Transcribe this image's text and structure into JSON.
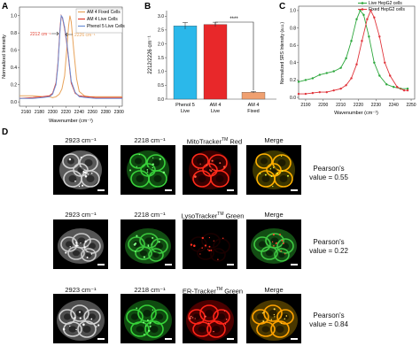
{
  "panels": {
    "A": {
      "letter": "A",
      "xlabel": "Wavenumber (cm⁻¹)",
      "ylabel": "Normalized Intensity",
      "xticks": [
        "2160",
        "2180",
        "2200",
        "2220",
        "2240",
        "2260",
        "2280",
        "2300"
      ],
      "yticks": [
        "0.0",
        "0.2",
        "0.4",
        "0.6",
        "0.8",
        "1.0"
      ],
      "legend": [
        {
          "label": "AM 4 Fixed Cells",
          "color": "#e8a35a"
        },
        {
          "label": "AM 4 Live Cells",
          "color": "#e03b2b"
        },
        {
          "label": "Phenol 5 Live Cells",
          "color": "#6d8fd6"
        }
      ],
      "ann_left": "2212 cm⁻¹",
      "ann_right": "2226 cm⁻¹"
    },
    "B": {
      "letter": "B",
      "ylabel": "2212/2226 cm⁻¹",
      "yticks": [
        "0.0",
        "0.5",
        "1.0",
        "1.5",
        "2.0",
        "2.5",
        "3.0"
      ],
      "categories": [
        "Phenol 5\nLive",
        "AM 4\nLive",
        "AM 4\nFixed"
      ],
      "significance": "****"
    },
    "C": {
      "letter": "C",
      "xlabel": "Wavenumber (cm⁻¹)",
      "ylabel": "Normalized SRS Intensity (a.u.)",
      "xticks": [
        "2190",
        "2200",
        "2210",
        "2220",
        "2230",
        "2240",
        "2250"
      ],
      "yticks": [
        "0.0",
        "0.2",
        "0.4",
        "0.6",
        "0.8",
        "1.0"
      ],
      "legend": [
        {
          "label": "Live HepG2 cells",
          "color": "#2aa63a"
        },
        {
          "label": "Fixed HepG2 cells",
          "color": "#e0333a"
        }
      ]
    },
    "D": {
      "letter": "D",
      "col_headers_row1": [
        "2923 cm⁻¹",
        "2218 cm⁻¹",
        "MitoTracker",
        "Merge"
      ],
      "col_headers_row2": [
        "2923 cm⁻¹",
        "2218 cm⁻¹",
        "LysoTracker",
        "Merge"
      ],
      "col_headers_row3": [
        "2923 cm⁻¹",
        "2218 cm⁻¹",
        "ER-Tracker",
        "Merge"
      ],
      "tm": "TM",
      "suffix_row1": " Red",
      "suffix_row2": " Green",
      "suffix_row3": " Green",
      "pearsons_label": "Pearson's",
      "pearsons_values": [
        "value = 0.55",
        "value = 0.22",
        "value = 0.84"
      ]
    }
  },
  "chart_data": [
    {
      "type": "line",
      "panel": "A",
      "xlabel": "Wavenumber (cm⁻¹)",
      "ylabel": "Normalized Intensity",
      "xlim": [
        2150,
        2305
      ],
      "ylim": [
        -0.05,
        1.1
      ],
      "series": [
        {
          "name": "AM 4 Fixed Cells",
          "color": "#e8a35a",
          "x": [
            2150,
            2170,
            2185,
            2195,
            2200,
            2205,
            2210,
            2214,
            2218,
            2222,
            2224,
            2226,
            2228,
            2232,
            2236,
            2240,
            2248,
            2256,
            2270,
            2290,
            2305
          ],
          "y": [
            0.07,
            0.07,
            0.06,
            0.06,
            0.05,
            0.06,
            0.09,
            0.15,
            0.3,
            0.68,
            0.88,
            1.0,
            0.93,
            0.58,
            0.27,
            0.12,
            0.07,
            0.06,
            0.06,
            0.06,
            0.06
          ]
        },
        {
          "name": "AM 4 Live Cells",
          "color": "#e03b2b",
          "x": [
            2150,
            2170,
            2185,
            2195,
            2200,
            2205,
            2208,
            2211,
            2213,
            2215,
            2218,
            2221,
            2224,
            2228,
            2234,
            2240,
            2250,
            2265,
            2285,
            2305
          ],
          "y": [
            0.04,
            0.05,
            0.06,
            0.07,
            0.1,
            0.22,
            0.45,
            0.85,
            1.0,
            0.97,
            0.85,
            0.7,
            0.5,
            0.22,
            0.1,
            0.07,
            0.06,
            0.05,
            0.05,
            0.05
          ]
        },
        {
          "name": "Phenol 5 Live Cells",
          "color": "#6d8fd6",
          "x": [
            2150,
            2170,
            2185,
            2195,
            2200,
            2205,
            2208,
            2211,
            2213,
            2215,
            2218,
            2221,
            2224,
            2228,
            2234,
            2240,
            2250,
            2265,
            2285,
            2305
          ],
          "y": [
            0.04,
            0.04,
            0.05,
            0.06,
            0.09,
            0.2,
            0.42,
            0.82,
            1.0,
            0.98,
            0.87,
            0.72,
            0.52,
            0.24,
            0.11,
            0.06,
            0.05,
            0.04,
            0.04,
            0.04
          ]
        }
      ]
    },
    {
      "type": "bar",
      "panel": "B",
      "ylabel": "2212/2226 cm⁻¹",
      "categories": [
        "Phenol 5 Live",
        "AM 4 Live",
        "AM 4 Fixed"
      ],
      "values": [
        2.65,
        2.7,
        0.25
      ],
      "errors": [
        0.12,
        0.08,
        0.03
      ],
      "colors": [
        "#2bb8ea",
        "#e8282a",
        "#f0a070"
      ],
      "ylim": [
        0,
        3.2
      ]
    },
    {
      "type": "line",
      "panel": "C",
      "xlabel": "Wavenumber (cm⁻¹)",
      "ylabel": "Normalized SRS Intensity (a.u.)",
      "xlim": [
        2186,
        2252
      ],
      "ylim": [
        -0.02,
        1.05
      ],
      "series": [
        {
          "name": "Live HepG2 cells",
          "color": "#2aa63a",
          "x": [
            2186,
            2190,
            2194,
            2198,
            2202,
            2206,
            2210,
            2213,
            2216,
            2219,
            2221,
            2223,
            2226,
            2229,
            2232,
            2236,
            2240,
            2244,
            2248
          ],
          "y": [
            0.18,
            0.2,
            0.22,
            0.26,
            0.28,
            0.3,
            0.34,
            0.45,
            0.65,
            0.9,
            1.0,
            0.95,
            0.7,
            0.4,
            0.25,
            0.15,
            0.12,
            0.1,
            0.1
          ]
        },
        {
          "name": "Fixed HepG2 cells",
          "color": "#e0333a",
          "x": [
            2186,
            2190,
            2194,
            2198,
            2202,
            2206,
            2210,
            2213,
            2216,
            2219,
            2222,
            2225,
            2227,
            2229,
            2232,
            2235,
            2238,
            2242,
            2246,
            2248
          ],
          "y": [
            0.04,
            0.04,
            0.05,
            0.06,
            0.06,
            0.08,
            0.1,
            0.14,
            0.22,
            0.38,
            0.65,
            0.9,
            1.0,
            0.92,
            0.7,
            0.4,
            0.25,
            0.12,
            0.08,
            0.08
          ]
        }
      ]
    }
  ]
}
